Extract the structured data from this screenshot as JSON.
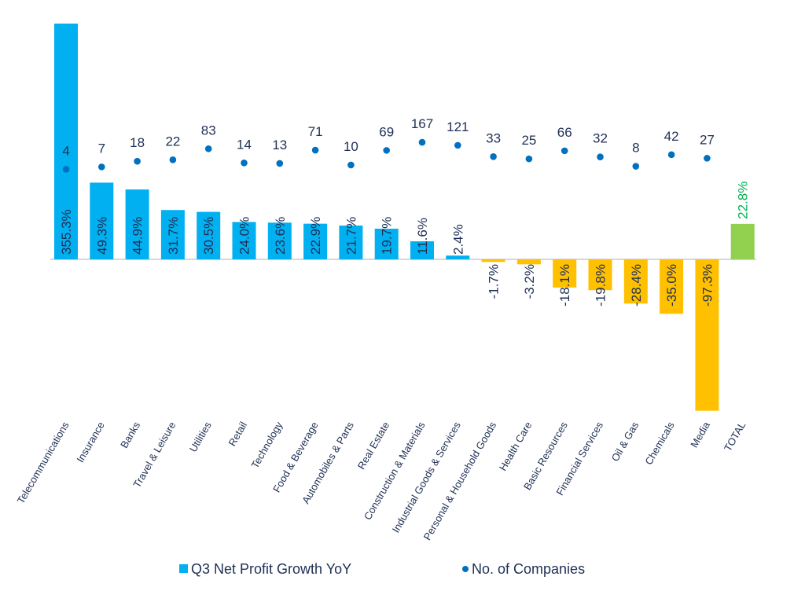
{
  "chart_data": {
    "type": "bar",
    "categories": [
      "Telecommunications",
      "Insurance",
      "Banks",
      "Travel & Leisure",
      "Utilities",
      "Retail",
      "Technology",
      "Food & Beverage",
      "Automobiles & Parts",
      "Real Estate",
      "Construction & Materials",
      "Industrial Goods & Services",
      "Personal & Household Goods",
      "Health Care",
      "Basic Resources",
      "Financial Services",
      "Oil & Gas",
      "Chemicals",
      "Media",
      "TOTAL"
    ],
    "series": [
      {
        "name": "Q3 Net Profit Growth YoY",
        "type": "bar",
        "values": [
          355.3,
          49.3,
          44.9,
          31.7,
          30.5,
          24.0,
          23.6,
          22.9,
          21.7,
          19.7,
          11.6,
          2.4,
          -1.7,
          -3.2,
          -18.1,
          -19.8,
          -28.4,
          -35.0,
          -97.3,
          22.8
        ],
        "labels": [
          "355.3%",
          "49.3%",
          "44.9%",
          "31.7%",
          "30.5%",
          "24.0%",
          "23.6%",
          "22.9%",
          "21.7%",
          "19.7%",
          "11.6%",
          "2.4%",
          "-1.7%",
          "-3.2%",
          "-18.1%",
          "-19.8%",
          "-28.4%",
          "-35.0%",
          "-97.3%",
          "22.8%"
        ]
      },
      {
        "name": "No. of Companies",
        "type": "scatter",
        "values": [
          4,
          7,
          18,
          22,
          83,
          14,
          13,
          71,
          10,
          69,
          167,
          121,
          33,
          25,
          66,
          32,
          8,
          42,
          27,
          null
        ],
        "labels": [
          "4",
          "7",
          "18",
          "22",
          "83",
          "14",
          "13",
          "71",
          "10",
          "69",
          "167",
          "121",
          "33",
          "25",
          "66",
          "32",
          "8",
          "42",
          "27",
          ""
        ]
      }
    ],
    "colors": {
      "positive": "#00b0f0",
      "negative": "#ffc000",
      "total": "#92d050",
      "dot": "#0070c0",
      "text": "#1f2f55",
      "total_label": "#00b050",
      "axis": "#bfbfbf"
    },
    "grid": false,
    "legend_position": "bottom",
    "legend": [
      {
        "label": "Q3 Net Profit Growth YoY",
        "marker": "square"
      },
      {
        "label": "No. of Companies",
        "marker": "circle"
      }
    ]
  }
}
